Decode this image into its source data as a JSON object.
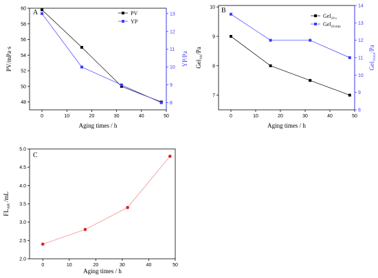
{
  "chart_data": [
    {
      "panel": "A",
      "type": "line",
      "x": [
        0,
        16,
        32,
        48
      ],
      "xlabel": "Aging times / h",
      "xlim": [
        -5,
        50
      ],
      "xticks": [
        0,
        10,
        20,
        30,
        40,
        50
      ],
      "ylabel_left": "PV/mPa·s",
      "ylim_left": [
        47,
        60
      ],
      "yticks_left": [
        48,
        50,
        52,
        54,
        56,
        58,
        60
      ],
      "ylabel_right": "YP/Pa",
      "ylim_right": [
        7.6,
        13.3
      ],
      "yticks_right": [
        8,
        9,
        10,
        11,
        12,
        13
      ],
      "right_axis_color": "#3b3bff",
      "legend_position": "top-right",
      "series": [
        {
          "name": "PV",
          "axis": "left",
          "color": "#000000",
          "marker": "square",
          "values": [
            59.8,
            55,
            50,
            48
          ]
        },
        {
          "name": "YP",
          "axis": "right",
          "color": "#3b3bff",
          "marker": "square",
          "values": [
            13,
            10,
            9,
            8
          ]
        }
      ]
    },
    {
      "panel": "B",
      "type": "line",
      "x": [
        0,
        16,
        32,
        48
      ],
      "xlabel": "Aging times / h",
      "xlim": [
        -5,
        50
      ],
      "xticks": [
        0,
        10,
        20,
        30,
        40,
        50
      ],
      "ylabel_left": {
        "main": "Gel",
        "sub": "10s",
        "tail": "/Pa"
      },
      "ylim_left": [
        6.5,
        10.05
      ],
      "yticks_left": [
        7,
        8,
        9,
        10
      ],
      "ylabel_right": {
        "main": "Gel",
        "sub": "10min",
        "tail": "/Pa"
      },
      "ylim_right": [
        8,
        14
      ],
      "yticks_right": [
        8,
        9,
        10,
        11,
        12,
        13,
        14
      ],
      "right_axis_color": "#3b3bff",
      "legend_position": "top-right",
      "series": [
        {
          "name": {
            "main": "Gel",
            "sub": "10 s"
          },
          "axis": "left",
          "color": "#000000",
          "marker": "square",
          "values": [
            9,
            8,
            7.5,
            7
          ]
        },
        {
          "name": {
            "main": "Gel",
            "sub": "10 min"
          },
          "axis": "right",
          "color": "#3b3bff",
          "marker": "square",
          "values": [
            13.5,
            12,
            12,
            11
          ]
        }
      ]
    },
    {
      "panel": "C",
      "type": "line",
      "x": [
        0,
        16,
        32,
        48
      ],
      "xlabel": "Aging times / h",
      "xlim": [
        -5,
        50
      ],
      "xticks": [
        0,
        10,
        20,
        30,
        40,
        50
      ],
      "ylabel_left": {
        "main": "FL",
        "sub": "API",
        "tail": " /mL"
      },
      "ylim_left": [
        2.0,
        5.0
      ],
      "yticks_left": [
        2.0,
        2.5,
        3.0,
        3.5,
        4.0,
        4.5,
        5.0
      ],
      "ytick_decimals": 1,
      "series": [
        {
          "axis": "left",
          "color": "#e02020",
          "line_color": "#f08080",
          "marker": "circle",
          "values": [
            2.4,
            2.8,
            3.4,
            4.8
          ]
        }
      ]
    }
  ]
}
